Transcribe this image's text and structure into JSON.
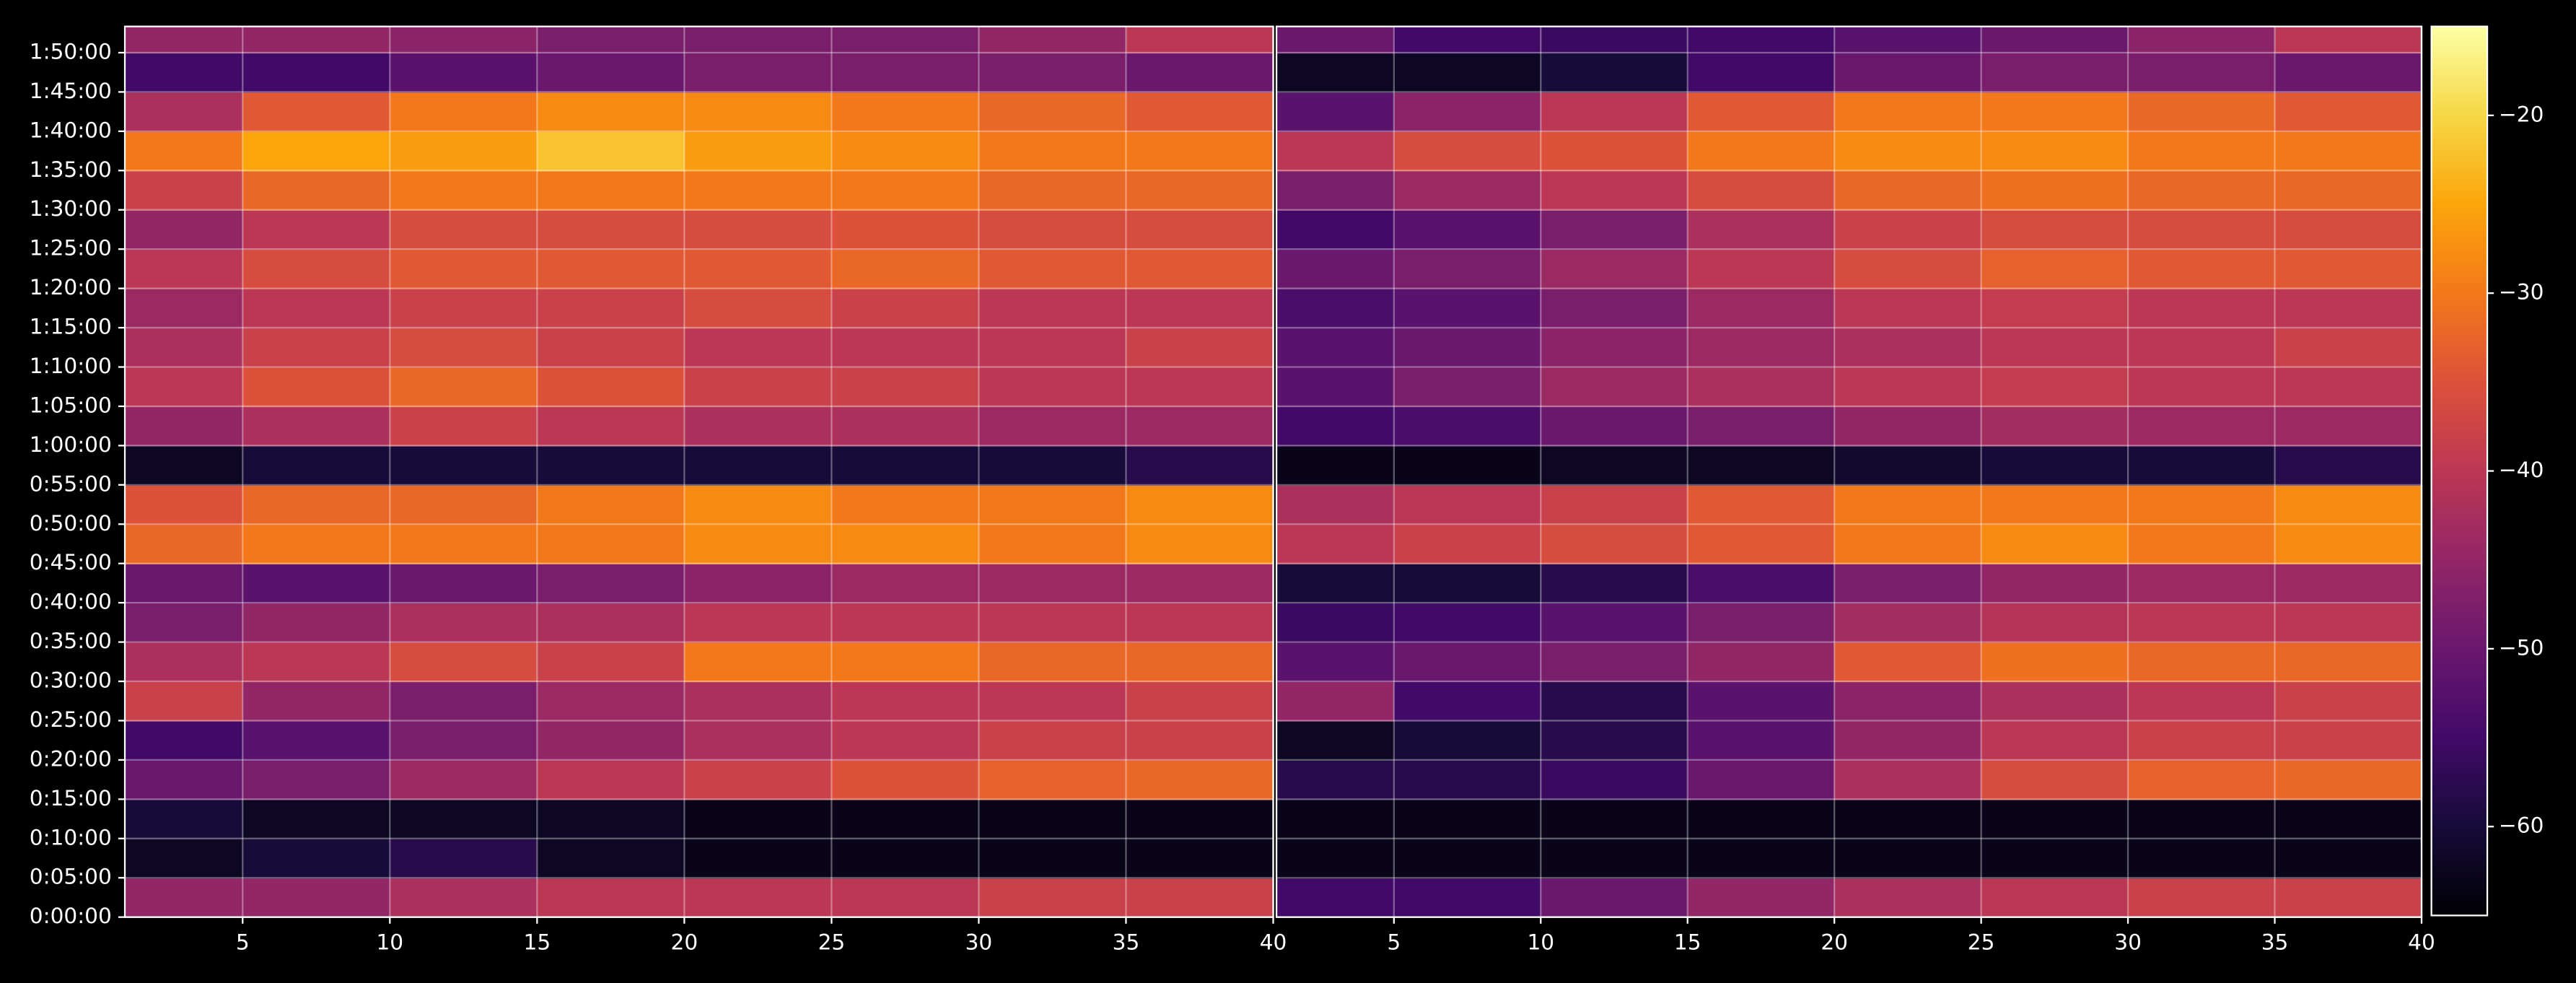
{
  "chart_data": {
    "type": "heatmap",
    "colormap": "inferno",
    "grid": true,
    "xlim": [
      1,
      40
    ],
    "xticks": [
      5,
      10,
      15,
      20,
      25,
      30,
      35,
      40
    ],
    "ylim": [
      0,
      6800
    ],
    "yticks": [
      {
        "value": 0,
        "label": "0:00:00"
      },
      {
        "value": 300,
        "label": "0:05:00"
      },
      {
        "value": 600,
        "label": "0:10:00"
      },
      {
        "value": 900,
        "label": "0:15:00"
      },
      {
        "value": 1200,
        "label": "0:20:00"
      },
      {
        "value": 1500,
        "label": "0:25:00"
      },
      {
        "value": 1800,
        "label": "0:30:00"
      },
      {
        "value": 2100,
        "label": "0:35:00"
      },
      {
        "value": 2400,
        "label": "0:40:00"
      },
      {
        "value": 2700,
        "label": "0:45:00"
      },
      {
        "value": 3000,
        "label": "0:50:00"
      },
      {
        "value": 3300,
        "label": "0:55:00"
      },
      {
        "value": 3600,
        "label": "1:00:00"
      },
      {
        "value": 3900,
        "label": "1:05:00"
      },
      {
        "value": 4200,
        "label": "1:10:00"
      },
      {
        "value": 4500,
        "label": "1:15:00"
      },
      {
        "value": 4800,
        "label": "1:20:00"
      },
      {
        "value": 5100,
        "label": "1:25:00"
      },
      {
        "value": 5400,
        "label": "1:30:00"
      },
      {
        "value": 5700,
        "label": "1:35:00"
      },
      {
        "value": 6000,
        "label": "1:40:00"
      },
      {
        "value": 6300,
        "label": "1:45:00"
      },
      {
        "value": 6600,
        "label": "1:50:00"
      }
    ],
    "x_bins": [
      1,
      5,
      10,
      15,
      20,
      25,
      30,
      35,
      40
    ],
    "y_bins": [
      0,
      300,
      600,
      900,
      1200,
      1500,
      1800,
      2100,
      2400,
      2700,
      3000,
      3300,
      3600,
      3900,
      4200,
      4500,
      4800,
      5100,
      5400,
      5700,
      6000,
      6300,
      6600,
      6800
    ],
    "panels": [
      {
        "z": [
          [
            -45,
            -45,
            -42,
            -40,
            -40,
            -40,
            -38,
            -38
          ],
          [
            -62,
            -60,
            -58,
            -62,
            -63,
            -63,
            -63,
            -63
          ],
          [
            -60,
            -62,
            -62,
            -62,
            -63,
            -63,
            -63,
            -63
          ],
          [
            -50,
            -48,
            -44,
            -40,
            -38,
            -35,
            -33,
            -32
          ],
          [
            -55,
            -52,
            -48,
            -45,
            -42,
            -40,
            -38,
            -38
          ],
          [
            -38,
            -45,
            -48,
            -44,
            -42,
            -40,
            -40,
            -38
          ],
          [
            -42,
            -40,
            -36,
            -38,
            -30,
            -30,
            -32,
            -32
          ],
          [
            -48,
            -45,
            -42,
            -42,
            -40,
            -40,
            -40,
            -40
          ],
          [
            -50,
            -52,
            -50,
            -48,
            -46,
            -44,
            -44,
            -44
          ],
          [
            -32,
            -30,
            -30,
            -30,
            -28,
            -28,
            -30,
            -28
          ],
          [
            -35,
            -32,
            -32,
            -30,
            -28,
            -30,
            -30,
            -28
          ],
          [
            -62,
            -60,
            -60,
            -60,
            -60,
            -60,
            -60,
            -58
          ],
          [
            -45,
            -42,
            -38,
            -40,
            -42,
            -42,
            -44,
            -44
          ],
          [
            -40,
            -35,
            -32,
            -35,
            -38,
            -38,
            -40,
            -40
          ],
          [
            -42,
            -38,
            -36,
            -38,
            -40,
            -40,
            -40,
            -38
          ],
          [
            -44,
            -40,
            -38,
            -38,
            -36,
            -38,
            -40,
            -40
          ],
          [
            -40,
            -36,
            -34,
            -34,
            -34,
            -32,
            -34,
            -34
          ],
          [
            -45,
            -40,
            -36,
            -36,
            -36,
            -35,
            -36,
            -36
          ],
          [
            -38,
            -32,
            -30,
            -30,
            -30,
            -30,
            -32,
            -32
          ],
          [
            -30,
            -25,
            -26,
            -22,
            -26,
            -28,
            -30,
            -30
          ],
          [
            -42,
            -34,
            -30,
            -28,
            -28,
            -30,
            -32,
            -34
          ],
          [
            -55,
            -55,
            -52,
            -50,
            -48,
            -48,
            -48,
            -50
          ],
          [
            -45,
            -45,
            -46,
            -48,
            -48,
            -48,
            -45,
            -40
          ]
        ]
      },
      {
        "z": [
          [
            -55,
            -55,
            -50,
            -45,
            -42,
            -40,
            -38,
            -38
          ],
          [
            -63,
            -63,
            -63,
            -63,
            -63,
            -63,
            -63,
            -63
          ],
          [
            -63,
            -63,
            -63,
            -63,
            -63,
            -63,
            -63,
            -63
          ],
          [
            -58,
            -58,
            -56,
            -50,
            -42,
            -36,
            -33,
            -32
          ],
          [
            -62,
            -60,
            -58,
            -52,
            -45,
            -40,
            -38,
            -38
          ],
          [
            -45,
            -55,
            -58,
            -52,
            -46,
            -42,
            -40,
            -38
          ],
          [
            -52,
            -50,
            -48,
            -45,
            -34,
            -31,
            -32,
            -32
          ],
          [
            -56,
            -55,
            -52,
            -48,
            -43,
            -41,
            -40,
            -40
          ],
          [
            -60,
            -60,
            -58,
            -54,
            -48,
            -45,
            -44,
            -44
          ],
          [
            -40,
            -38,
            -36,
            -34,
            -30,
            -28,
            -30,
            -28
          ],
          [
            -42,
            -40,
            -38,
            -34,
            -30,
            -30,
            -30,
            -28
          ],
          [
            -63,
            -63,
            -62,
            -62,
            -61,
            -60,
            -60,
            -58
          ],
          [
            -55,
            -54,
            -50,
            -48,
            -45,
            -43,
            -44,
            -44
          ],
          [
            -52,
            -48,
            -44,
            -42,
            -40,
            -39,
            -40,
            -40
          ],
          [
            -52,
            -50,
            -46,
            -44,
            -42,
            -40,
            -40,
            -38
          ],
          [
            -54,
            -52,
            -48,
            -44,
            -40,
            -39,
            -40,
            -40
          ],
          [
            -50,
            -48,
            -44,
            -40,
            -36,
            -33,
            -34,
            -34
          ],
          [
            -55,
            -52,
            -48,
            -42,
            -38,
            -36,
            -36,
            -36
          ],
          [
            -48,
            -44,
            -40,
            -36,
            -32,
            -31,
            -32,
            -32
          ],
          [
            -40,
            -36,
            -35,
            -30,
            -28,
            -28,
            -30,
            -30
          ],
          [
            -52,
            -46,
            -40,
            -34,
            -30,
            -30,
            -32,
            -34
          ],
          [
            -62,
            -62,
            -60,
            -55,
            -50,
            -48,
            -48,
            -50
          ],
          [
            -50,
            -55,
            -56,
            -55,
            -52,
            -50,
            -46,
            -40
          ]
        ]
      }
    ],
    "colorbar": {
      "clim": [
        -65,
        -15
      ],
      "ticks": [
        {
          "value": -60,
          "label": "−60"
        },
        {
          "value": -50,
          "label": "−50"
        },
        {
          "value": -40,
          "label": "−40"
        },
        {
          "value": -30,
          "label": "−30"
        },
        {
          "value": -20,
          "label": "−20"
        }
      ]
    }
  }
}
